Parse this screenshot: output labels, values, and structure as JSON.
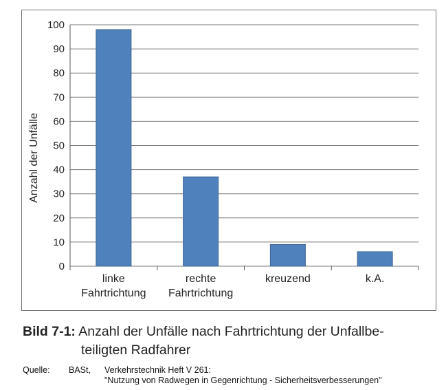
{
  "chart_data": {
    "type": "bar",
    "categories": [
      [
        "linke",
        "Fahrtrichtung"
      ],
      [
        "rechte",
        "Fahrtrichtung"
      ],
      [
        "kreuzend"
      ],
      [
        "k.A."
      ]
    ],
    "values": [
      98,
      37,
      9,
      6
    ],
    "ylabel": "Anzahl der Unfälle",
    "xlabel": "",
    "ylim": [
      0,
      100
    ],
    "yticks": [
      0,
      10,
      20,
      30,
      40,
      50,
      60,
      70,
      80,
      90,
      100
    ],
    "grid": true,
    "bar_color": "#4f81bd"
  },
  "caption": {
    "number": "Bild 7-1:",
    "line1": "Anzahl der Unfälle nach Fahrtrichtung der Unfallbe-",
    "line2": "teiligten Radfahrer"
  },
  "source": {
    "label": "Quelle:",
    "org": "BASt,",
    "line1": "Verkehrstechnik Heft V 261:",
    "line2": "\"Nutzung von Radwegen in Gegenrichtung - Sicherheitsverbesserungen\""
  }
}
